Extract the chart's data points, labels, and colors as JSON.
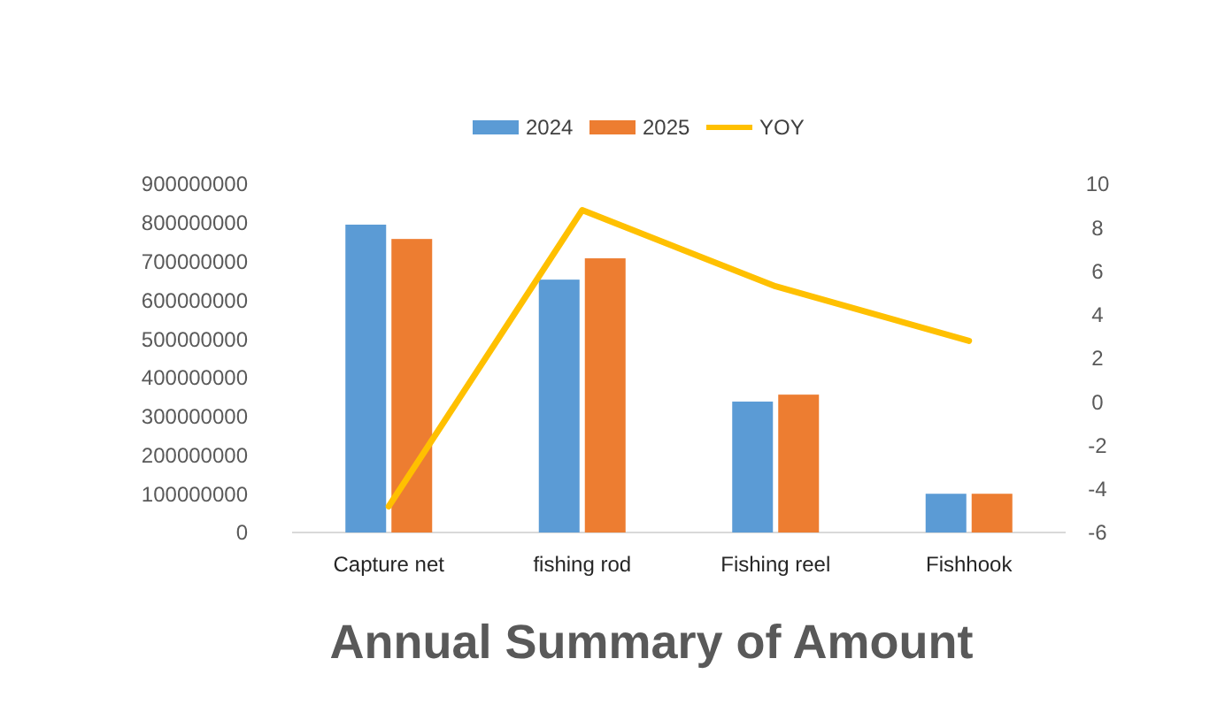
{
  "chart_data": {
    "type": "bar",
    "title": "Annual Summary of Amount",
    "categories": [
      "Capture net",
      "fishing rod",
      "Fishing reel",
      "Fishhook"
    ],
    "series": [
      {
        "name": "2024",
        "color": "#5b9bd5",
        "values": [
          795000000,
          653000000,
          338000000,
          100000000
        ]
      },
      {
        "name": "2025",
        "color": "#ed7d31",
        "values": [
          758000000,
          708000000,
          356000000,
          100000000
        ]
      },
      {
        "name": "YOY",
        "type": "line",
        "axis": "y2",
        "color": "#ffc000",
        "values": [
          -4.8,
          8.8,
          5.3,
          2.8
        ]
      }
    ],
    "ylim": [
      0,
      900000000
    ],
    "yticks": [
      0,
      100000000,
      200000000,
      300000000,
      400000000,
      500000000,
      600000000,
      700000000,
      800000000,
      900000000
    ],
    "y2lim": [
      -6,
      10
    ],
    "y2ticks": [
      -6,
      -4,
      -2,
      0,
      2,
      4,
      6,
      8,
      10
    ],
    "grid": false,
    "legend": "top"
  }
}
